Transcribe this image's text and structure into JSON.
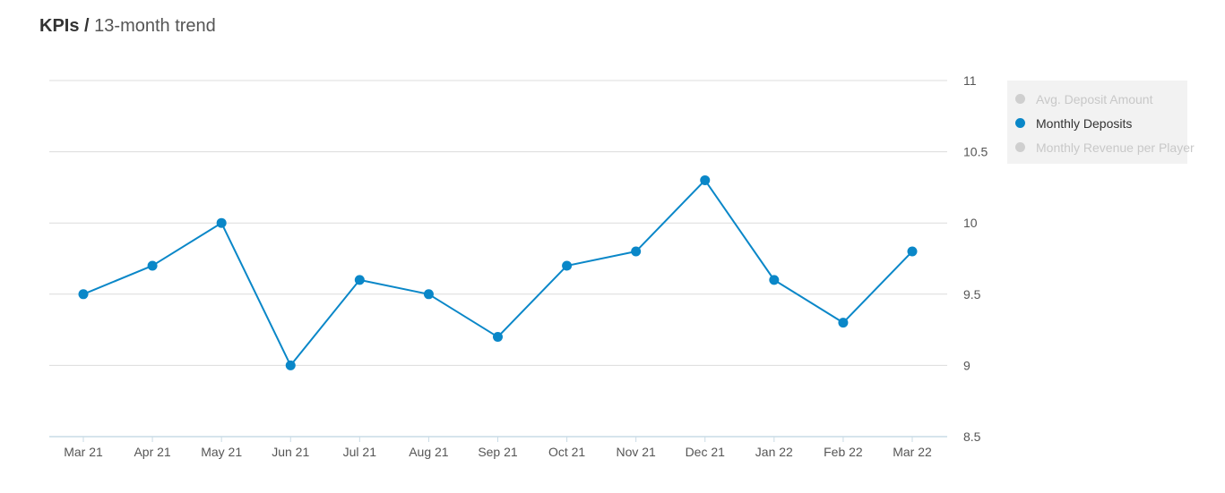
{
  "header": {
    "title": "KPIs",
    "separator": "/",
    "subtitle": "13-month trend"
  },
  "legend": {
    "items": [
      {
        "label": "Avg. Deposit Amount",
        "active": false
      },
      {
        "label": "Monthly Deposits",
        "active": true
      },
      {
        "label": "Monthly Revenue per Player",
        "active": false
      }
    ]
  },
  "colors": {
    "series": "#0a87c8",
    "grid": "#dcdcdc",
    "axis_line": "#c9dbe6",
    "tick_text": "#555555",
    "legend_bg": "#f2f2f2",
    "inactive": "#cfcfcf"
  },
  "chart_data": {
    "type": "line",
    "categories": [
      "Mar 21",
      "Apr 21",
      "May 21",
      "Jun 21",
      "Jul 21",
      "Aug 21",
      "Sep 21",
      "Oct 21",
      "Nov 21",
      "Dec 21",
      "Jan 22",
      "Feb 22",
      "Mar 22"
    ],
    "series": [
      {
        "name": "Monthly Deposits",
        "values": [
          9.5,
          9.7,
          10.0,
          9.0,
          9.6,
          9.5,
          9.2,
          9.7,
          9.8,
          10.3,
          9.6,
          9.3,
          9.8
        ]
      }
    ],
    "ylim": [
      8.5,
      11
    ],
    "yticks": [
      "8.5",
      "9",
      "9.5",
      "10",
      "10.5",
      "11"
    ],
    "y_axis_position": "right",
    "grid": true,
    "legend_position": "right"
  }
}
